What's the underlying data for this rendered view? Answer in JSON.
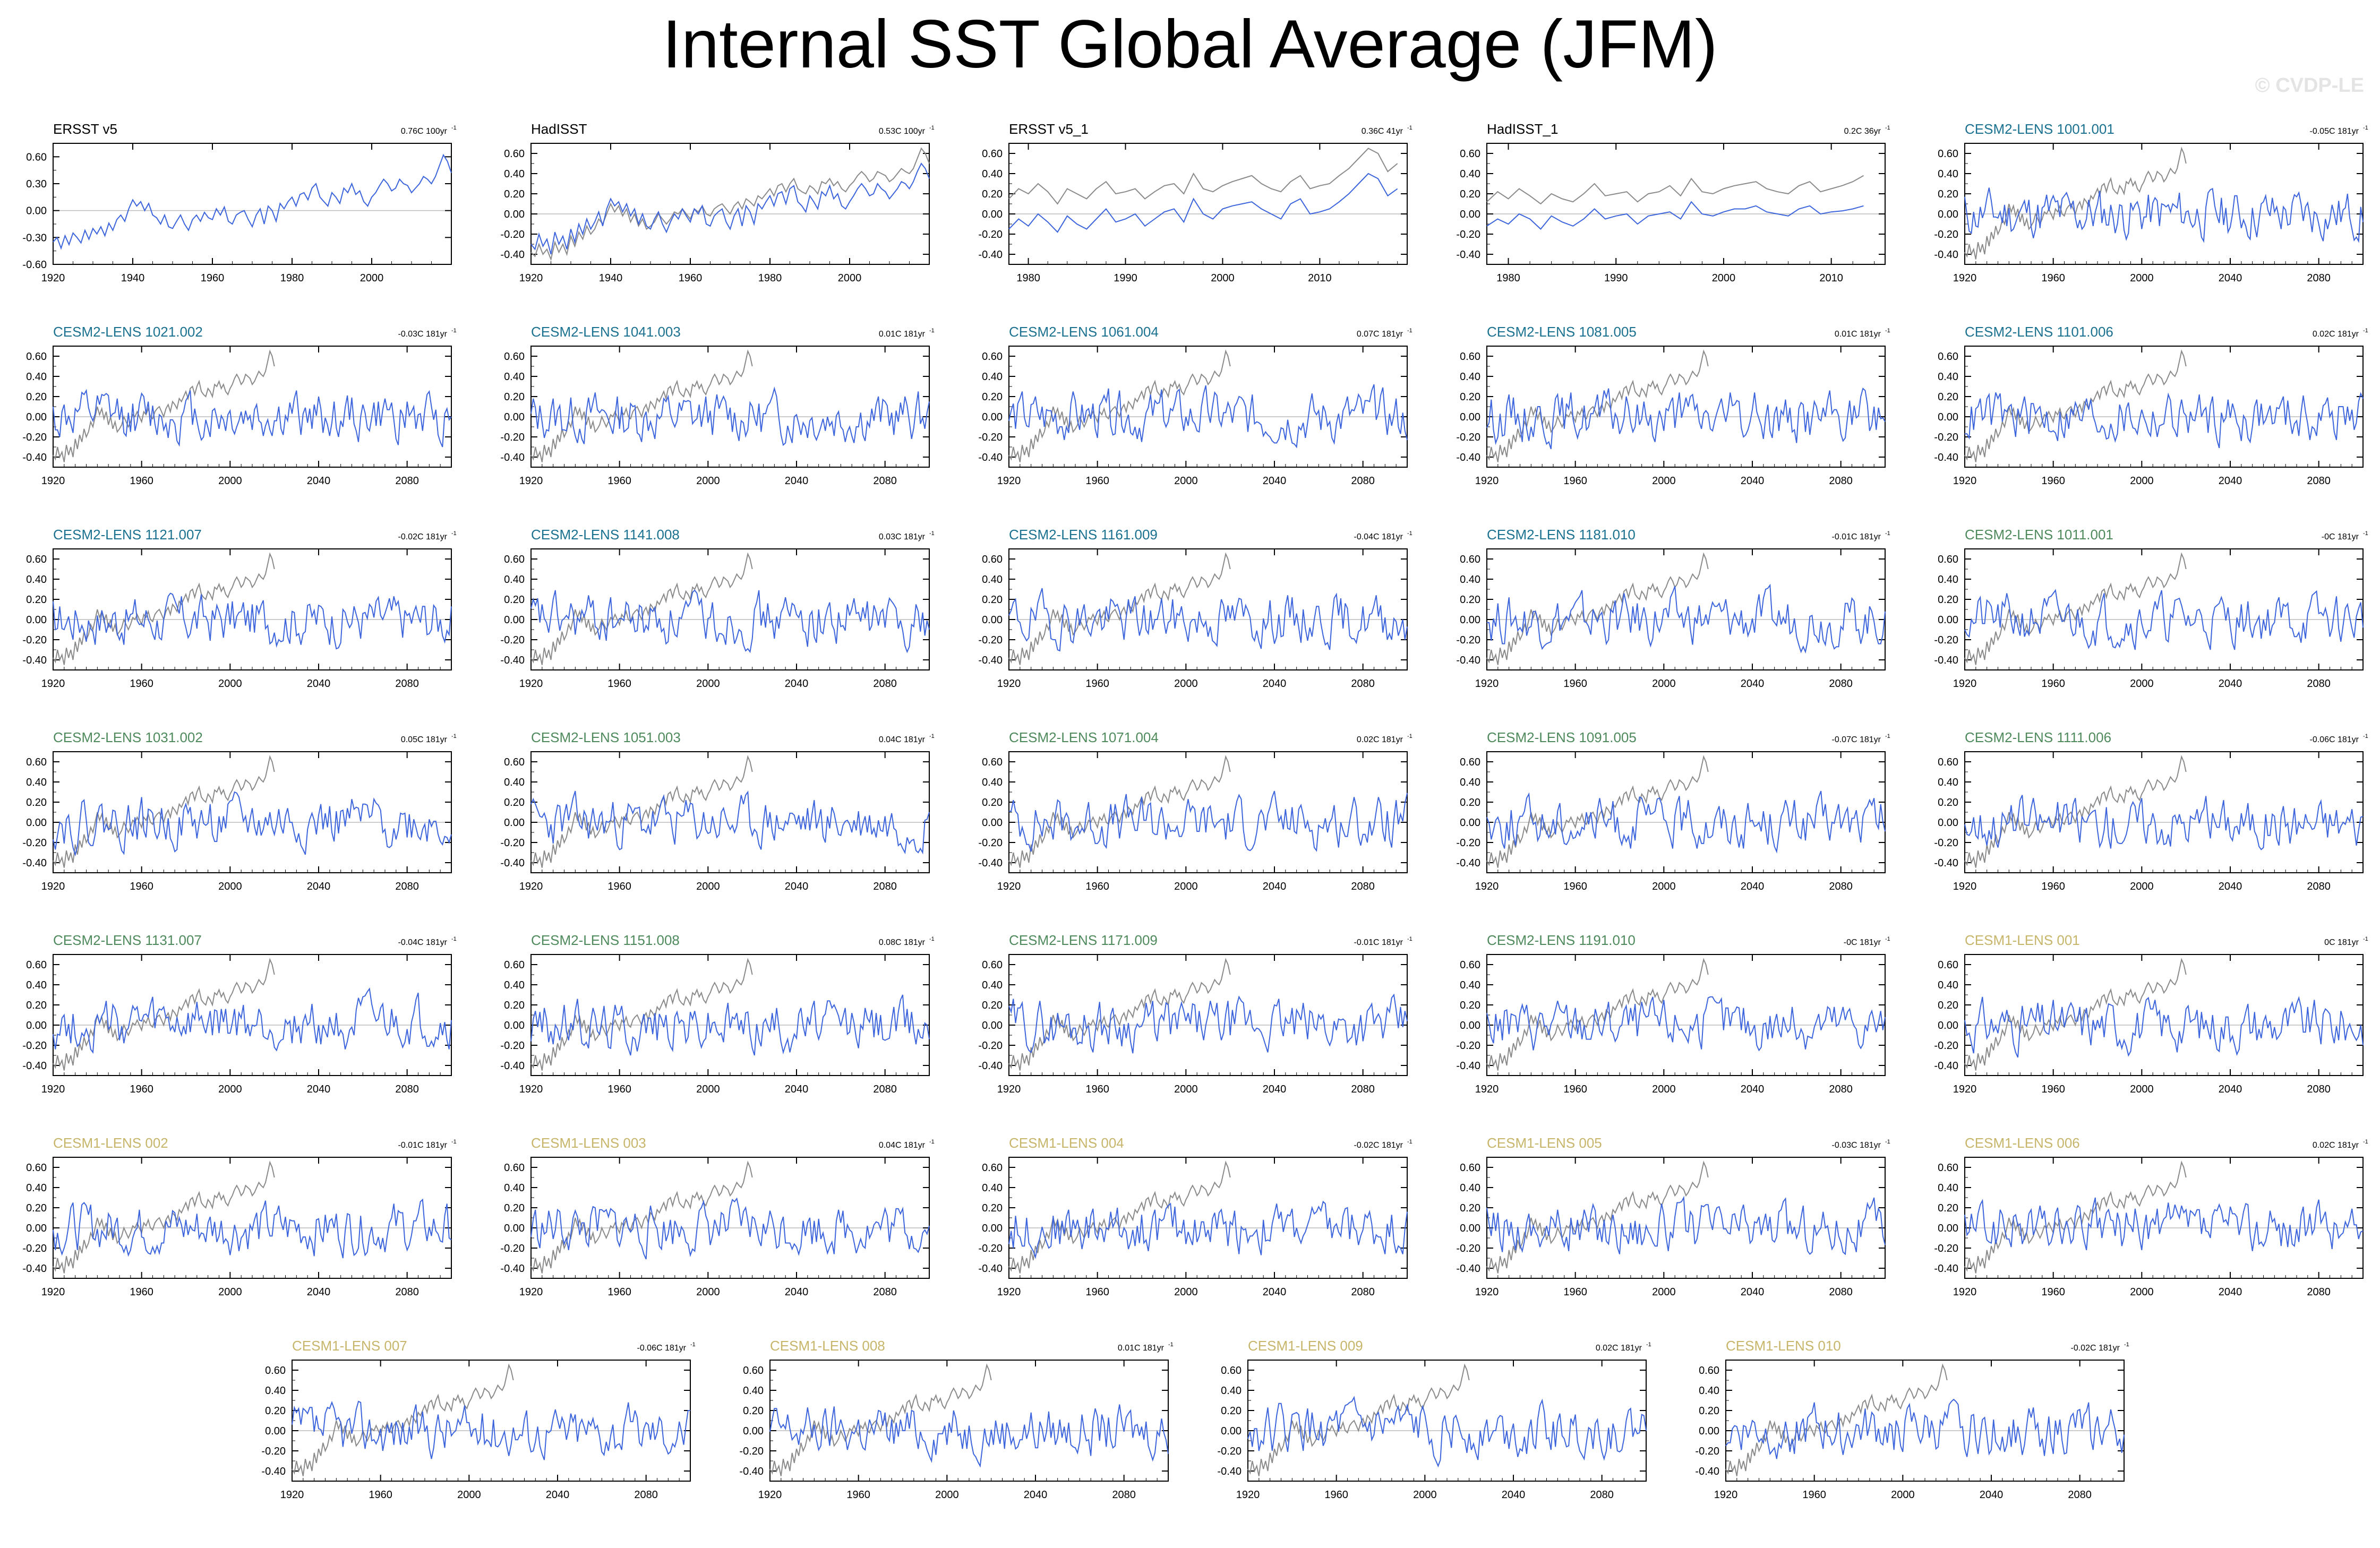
{
  "page": {
    "title": "Internal SST Global Average (JFM)",
    "copyright": "© CVDP-LE"
  },
  "colors": {
    "member_line": "#3c64dc",
    "observed_line": "#8a8a8a",
    "obs_title": "#000000",
    "cesm2_first_group": "#1a7190",
    "cesm2_second_group": "#4e8a5c",
    "cesm1_group": "#c7b56a",
    "zero_line": "#bbbbbb"
  },
  "chart_data": [
    {
      "type": "line",
      "title": "ERSST v5",
      "trend": "0.76C 100yr",
      "title_color": "#000000",
      "x_range": [
        1920,
        2020
      ],
      "x_ticks": [
        1920,
        1940,
        1960,
        1980,
        2000
      ],
      "y_range": [
        -0.6,
        0.75
      ],
      "y_ticks": [
        -0.6,
        -0.3,
        0.0,
        0.3,
        0.6
      ],
      "y_tick_labels": [
        "-0.60",
        "-0.30",
        "0.00",
        "0.30",
        "0.60"
      ],
      "series": [
        {
          "x_start": 1920,
          "values": [
            -0.35,
            -0.3,
            -0.42,
            -0.28,
            -0.38,
            -0.25,
            -0.3,
            -0.36,
            -0.22,
            -0.32,
            -0.2,
            -0.26,
            -0.18,
            -0.28,
            -0.14,
            -0.22,
            -0.1,
            -0.05,
            -0.12,
            0.02,
            0.12,
            0.05,
            0.1,
            0.0,
            0.08,
            -0.05,
            -0.08,
            -0.15,
            -0.05,
            -0.18,
            -0.2,
            -0.12,
            -0.05,
            -0.15,
            -0.22,
            -0.1,
            -0.05,
            -0.12,
            -0.02,
            -0.08,
            -0.1,
            0.02,
            -0.05,
            0.04,
            -0.12,
            -0.15,
            -0.05,
            -0.02,
            0.0,
            -0.1,
            -0.18,
            -0.05,
            0.02,
            -0.15,
            0.05,
            0.0,
            -0.12,
            0.08,
            0.02,
            0.1,
            0.15,
            0.05,
            0.18,
            0.2,
            0.12,
            0.25,
            0.3,
            0.15,
            0.1,
            0.05,
            0.2,
            0.15,
            0.08,
            0.25,
            0.2,
            0.3,
            0.18,
            0.22,
            0.1,
            0.05,
            0.15,
            0.2,
            0.28,
            0.35,
            0.3,
            0.22,
            0.25,
            0.35,
            0.3,
            0.28,
            0.2,
            0.25,
            0.3,
            0.38,
            0.35,
            0.3,
            0.38,
            0.5,
            0.62,
            0.55,
            0.42
          ]
        }
      ]
    },
    {
      "type": "line",
      "title": "HadISST",
      "trend": "0.53C 100yr",
      "title_color": "#000000",
      "x_range": [
        1920,
        2020
      ],
      "x_ticks": [
        1920,
        1940,
        1960,
        1980,
        2000
      ],
      "y_range": [
        -0.5,
        0.7
      ],
      "y_ticks": [
        -0.4,
        -0.2,
        0.0,
        0.2,
        0.4,
        0.6
      ],
      "y_tick_labels": [
        "-0.40",
        "-0.20",
        "0.00",
        "0.20",
        "0.40",
        "0.60"
      ],
      "series": [
        {
          "x_start": 1920,
          "values": [
            -0.3,
            -0.35,
            -0.2,
            -0.32,
            -0.25,
            -0.4,
            -0.18,
            -0.3,
            -0.22,
            -0.35,
            -0.15,
            -0.28,
            -0.1,
            -0.2,
            -0.05,
            -0.15,
            -0.08,
            0.02,
            -0.12,
            0.05,
            0.15,
            0.08,
            0.12,
            0.02,
            0.1,
            -0.02,
            0.05,
            -0.1,
            0.0,
            -0.12,
            -0.15,
            -0.05,
            0.02,
            -0.1,
            -0.18,
            -0.08,
            0.0,
            -0.05,
            0.05,
            -0.02,
            -0.08,
            0.05,
            0.0,
            0.08,
            -0.1,
            -0.12,
            -0.02,
            0.02,
            0.05,
            -0.08,
            -0.15,
            -0.02,
            0.05,
            -0.12,
            0.08,
            0.02,
            -0.1,
            0.1,
            0.05,
            0.12,
            0.18,
            0.08,
            0.2,
            0.22,
            0.1,
            0.25,
            0.28,
            0.12,
            0.08,
            0.02,
            0.18,
            0.12,
            0.05,
            0.22,
            0.18,
            0.28,
            0.15,
            0.2,
            0.08,
            0.05,
            0.12,
            0.18,
            0.25,
            0.3,
            0.25,
            0.18,
            0.2,
            0.3,
            0.25,
            0.22,
            0.15,
            0.2,
            0.25,
            0.32,
            0.3,
            0.25,
            0.32,
            0.42,
            0.5,
            0.45,
            0.35
          ]
        },
        {
          "x_start": 1920,
          "values": [
            -0.38,
            -0.42,
            -0.3,
            -0.4,
            -0.35,
            -0.45,
            -0.28,
            -0.38,
            -0.3,
            -0.4,
            -0.22,
            -0.32,
            -0.18,
            -0.25,
            -0.12,
            -0.2,
            -0.15,
            -0.05,
            -0.1,
            0.0,
            0.1,
            0.02,
            0.08,
            -0.02,
            0.05,
            -0.08,
            0.0,
            -0.12,
            -0.05,
            -0.15,
            -0.12,
            -0.08,
            0.0,
            -0.05,
            -0.1,
            -0.05,
            0.02,
            0.0,
            0.05,
            0.0,
            -0.05,
            0.05,
            0.02,
            0.08,
            0.0,
            -0.02,
            0.05,
            0.08,
            0.1,
            0.05,
            0.0,
            0.08,
            0.12,
            0.05,
            0.15,
            0.12,
            0.08,
            0.18,
            0.15,
            0.2,
            0.25,
            0.18,
            0.28,
            0.3,
            0.22,
            0.3,
            0.35,
            0.25,
            0.22,
            0.2,
            0.28,
            0.25,
            0.2,
            0.32,
            0.3,
            0.35,
            0.28,
            0.32,
            0.25,
            0.22,
            0.28,
            0.32,
            0.38,
            0.42,
            0.38,
            0.32,
            0.35,
            0.42,
            0.4,
            0.38,
            0.32,
            0.35,
            0.4,
            0.45,
            0.42,
            0.4,
            0.45,
            0.55,
            0.65,
            0.6,
            0.5
          ]
        }
      ]
    },
    {
      "type": "line",
      "title": "ERSST v5_1",
      "trend": "0.36C 41yr",
      "title_color": "#000000",
      "x_range": [
        1978,
        2019
      ],
      "x_ticks": [
        1980,
        1990,
        2000,
        2010
      ],
      "y_range": [
        -0.5,
        0.7
      ],
      "y_ticks": [
        -0.4,
        -0.2,
        0.0,
        0.2,
        0.4,
        0.6
      ],
      "y_tick_labels": [
        "-0.40",
        "-0.20",
        "0.00",
        "0.20",
        "0.40",
        "0.60"
      ],
      "series": [
        {
          "x_start": 1978,
          "values": [
            -0.15,
            -0.05,
            -0.12,
            0.0,
            -0.08,
            -0.18,
            -0.02,
            -0.1,
            -0.15,
            -0.05,
            0.05,
            -0.08,
            -0.05,
            0.0,
            -0.12,
            -0.05,
            0.02,
            0.05,
            -0.08,
            0.15,
            0.0,
            -0.05,
            0.05,
            0.08,
            0.1,
            0.12,
            0.05,
            0.0,
            -0.05,
            0.1,
            0.15,
            0.0,
            0.02,
            0.05,
            0.12,
            0.2,
            0.3,
            0.4,
            0.35,
            0.18,
            0.25
          ]
        },
        {
          "x_start": 1978,
          "values": [
            0.15,
            0.25,
            0.2,
            0.3,
            0.22,
            0.1,
            0.25,
            0.2,
            0.15,
            0.25,
            0.32,
            0.2,
            0.22,
            0.25,
            0.15,
            0.22,
            0.28,
            0.3,
            0.2,
            0.4,
            0.25,
            0.22,
            0.28,
            0.32,
            0.35,
            0.38,
            0.3,
            0.25,
            0.22,
            0.32,
            0.38,
            0.25,
            0.28,
            0.3,
            0.38,
            0.45,
            0.55,
            0.65,
            0.6,
            0.42,
            0.5
          ]
        }
      ]
    },
    {
      "type": "line",
      "title": "HadISST_1",
      "trend": "0.2C 36yr",
      "title_color": "#000000",
      "x_range": [
        1978,
        2015
      ],
      "x_ticks": [
        1980,
        1990,
        2000,
        2010
      ],
      "y_range": [
        -0.5,
        0.7
      ],
      "y_ticks": [
        -0.4,
        -0.2,
        0.0,
        0.2,
        0.4,
        0.6
      ],
      "y_tick_labels": [
        "-0.40",
        "-0.20",
        "0.00",
        "0.20",
        "0.40",
        "0.60"
      ],
      "series": [
        {
          "x_start": 1978,
          "values": [
            -0.12,
            -0.05,
            -0.1,
            0.0,
            -0.05,
            -0.15,
            -0.02,
            -0.08,
            -0.12,
            -0.05,
            0.05,
            -0.05,
            -0.02,
            0.0,
            -0.1,
            -0.02,
            0.0,
            0.02,
            -0.05,
            0.12,
            0.0,
            -0.02,
            0.02,
            0.05,
            0.05,
            0.08,
            0.02,
            0.0,
            -0.02,
            0.05,
            0.08,
            0.0,
            0.02,
            0.03,
            0.05,
            0.08
          ]
        },
        {
          "x_start": 1978,
          "values": [
            0.12,
            0.22,
            0.15,
            0.25,
            0.18,
            0.1,
            0.2,
            0.15,
            0.12,
            0.2,
            0.3,
            0.18,
            0.2,
            0.22,
            0.12,
            0.2,
            0.22,
            0.28,
            0.18,
            0.35,
            0.22,
            0.2,
            0.25,
            0.28,
            0.3,
            0.32,
            0.25,
            0.22,
            0.2,
            0.28,
            0.32,
            0.22,
            0.25,
            0.28,
            0.32,
            0.38
          ]
        }
      ]
    },
    {
      "type": "line",
      "title": "CESM2-LENS 1001.001",
      "trend": "-0.05C 181yr",
      "title_color": "#1a7190",
      "seed": 11
    },
    {
      "type": "line",
      "title": "CESM2-LENS 1021.002",
      "trend": "-0.03C 181yr",
      "title_color": "#1a7190",
      "seed": 12
    },
    {
      "type": "line",
      "title": "CESM2-LENS 1041.003",
      "trend": "0.01C 181yr",
      "title_color": "#1a7190",
      "seed": 13
    },
    {
      "type": "line",
      "title": "CESM2-LENS 1061.004",
      "trend": "0.07C 181yr",
      "title_color": "#1a7190",
      "seed": 14
    },
    {
      "type": "line",
      "title": "CESM2-LENS 1081.005",
      "trend": "0.01C 181yr",
      "title_color": "#1a7190",
      "seed": 15
    },
    {
      "type": "line",
      "title": "CESM2-LENS 1101.006",
      "trend": "0.02C 181yr",
      "title_color": "#1a7190",
      "seed": 16
    },
    {
      "type": "line",
      "title": "CESM2-LENS 1121.007",
      "trend": "-0.02C 181yr",
      "title_color": "#1a7190",
      "seed": 17
    },
    {
      "type": "line",
      "title": "CESM2-LENS 1141.008",
      "trend": "0.03C 181yr",
      "title_color": "#1a7190",
      "seed": 18
    },
    {
      "type": "line",
      "title": "CESM2-LENS 1161.009",
      "trend": "-0.04C 181yr",
      "title_color": "#1a7190",
      "seed": 19
    },
    {
      "type": "line",
      "title": "CESM2-LENS 1181.010",
      "trend": "-0.01C 181yr",
      "title_color": "#1a7190",
      "seed": 20
    },
    {
      "type": "line",
      "title": "CESM2-LENS 1011.001",
      "trend": "-0C 181yr",
      "title_color": "#4e8a5c",
      "seed": 21
    },
    {
      "type": "line",
      "title": "CESM2-LENS 1031.002",
      "trend": "0.05C 181yr",
      "title_color": "#4e8a5c",
      "seed": 22
    },
    {
      "type": "line",
      "title": "CESM2-LENS 1051.003",
      "trend": "0.04C 181yr",
      "title_color": "#4e8a5c",
      "seed": 23
    },
    {
      "type": "line",
      "title": "CESM2-LENS 1071.004",
      "trend": "0.02C 181yr",
      "title_color": "#4e8a5c",
      "seed": 24
    },
    {
      "type": "line",
      "title": "CESM2-LENS 1091.005",
      "trend": "-0.07C 181yr",
      "title_color": "#4e8a5c",
      "seed": 25
    },
    {
      "type": "line",
      "title": "CESM2-LENS 1111.006",
      "trend": "-0.06C 181yr",
      "title_color": "#4e8a5c",
      "seed": 26
    },
    {
      "type": "line",
      "title": "CESM2-LENS 1131.007",
      "trend": "-0.04C 181yr",
      "title_color": "#4e8a5c",
      "seed": 27
    },
    {
      "type": "line",
      "title": "CESM2-LENS 1151.008",
      "trend": "0.08C 181yr",
      "title_color": "#4e8a5c",
      "seed": 28
    },
    {
      "type": "line",
      "title": "CESM2-LENS 1171.009",
      "trend": "-0.01C 181yr",
      "title_color": "#4e8a5c",
      "seed": 29
    },
    {
      "type": "line",
      "title": "CESM2-LENS 1191.010",
      "trend": "-0C 181yr",
      "title_color": "#4e8a5c",
      "seed": 30
    },
    {
      "type": "line",
      "title": "CESM1-LENS 001",
      "trend": "0C 181yr",
      "title_color": "#c7b56a",
      "seed": 31
    },
    {
      "type": "line",
      "title": "CESM1-LENS 002",
      "trend": "-0.01C 181yr",
      "title_color": "#c7b56a",
      "seed": 32
    },
    {
      "type": "line",
      "title": "CESM1-LENS 003",
      "trend": "0.04C 181yr",
      "title_color": "#c7b56a",
      "seed": 33
    },
    {
      "type": "line",
      "title": "CESM1-LENS 004",
      "trend": "-0.02C 181yr",
      "title_color": "#c7b56a",
      "seed": 34
    },
    {
      "type": "line",
      "title": "CESM1-LENS 005",
      "trend": "-0.03C 181yr",
      "title_color": "#c7b56a",
      "seed": 35
    },
    {
      "type": "line",
      "title": "CESM1-LENS 006",
      "trend": "0.02C 181yr",
      "title_color": "#c7b56a",
      "seed": 36
    },
    {
      "type": "line",
      "title": "CESM1-LENS 007",
      "trend": "-0.06C 181yr",
      "title_color": "#c7b56a",
      "seed": 37
    },
    {
      "type": "line",
      "title": "CESM1-LENS 008",
      "trend": "0.01C 181yr",
      "title_color": "#c7b56a",
      "seed": 38
    },
    {
      "type": "line",
      "title": "CESM1-LENS 009",
      "trend": "0.02C 181yr",
      "title_color": "#c7b56a",
      "seed": 39
    },
    {
      "type": "line",
      "title": "CESM1-LENS 010",
      "trend": "-0.02C 181yr",
      "title_color": "#c7b56a",
      "seed": 40
    }
  ],
  "member_defaults": {
    "x_range": [
      1920,
      2100
    ],
    "x_ticks": [
      1920,
      1960,
      2000,
      2040,
      2080
    ],
    "y_range": [
      -0.5,
      0.7
    ],
    "y_ticks": [
      -0.4,
      -0.2,
      0.0,
      0.2,
      0.4,
      0.6
    ],
    "y_tick_labels": [
      "-0.40",
      "-0.20",
      "0.00",
      "0.20",
      "0.40",
      "0.60"
    ],
    "observed_reference": {
      "x_start": 1920,
      "values": [
        -0.38,
        -0.42,
        -0.3,
        -0.4,
        -0.35,
        -0.45,
        -0.28,
        -0.38,
        -0.3,
        -0.4,
        -0.22,
        -0.32,
        -0.18,
        -0.25,
        -0.12,
        -0.2,
        -0.15,
        -0.05,
        -0.1,
        0.0,
        0.1,
        0.02,
        0.08,
        -0.02,
        0.05,
        -0.08,
        0.0,
        -0.12,
        -0.05,
        -0.15,
        -0.12,
        -0.08,
        0.0,
        -0.05,
        -0.1,
        -0.05,
        0.02,
        0.0,
        0.05,
        0.0,
        -0.05,
        0.05,
        0.02,
        0.08,
        0.0,
        -0.02,
        0.05,
        0.08,
        0.1,
        0.05,
        0.0,
        0.08,
        0.12,
        0.05,
        0.15,
        0.12,
        0.08,
        0.18,
        0.15,
        0.2,
        0.25,
        0.18,
        0.28,
        0.3,
        0.22,
        0.3,
        0.35,
        0.25,
        0.22,
        0.2,
        0.28,
        0.25,
        0.2,
        0.32,
        0.3,
        0.35,
        0.28,
        0.32,
        0.25,
        0.22,
        0.28,
        0.32,
        0.38,
        0.42,
        0.38,
        0.32,
        0.35,
        0.42,
        0.4,
        0.38,
        0.32,
        0.35,
        0.4,
        0.45,
        0.42,
        0.4,
        0.45,
        0.55,
        0.65,
        0.6,
        0.5
      ]
    }
  }
}
